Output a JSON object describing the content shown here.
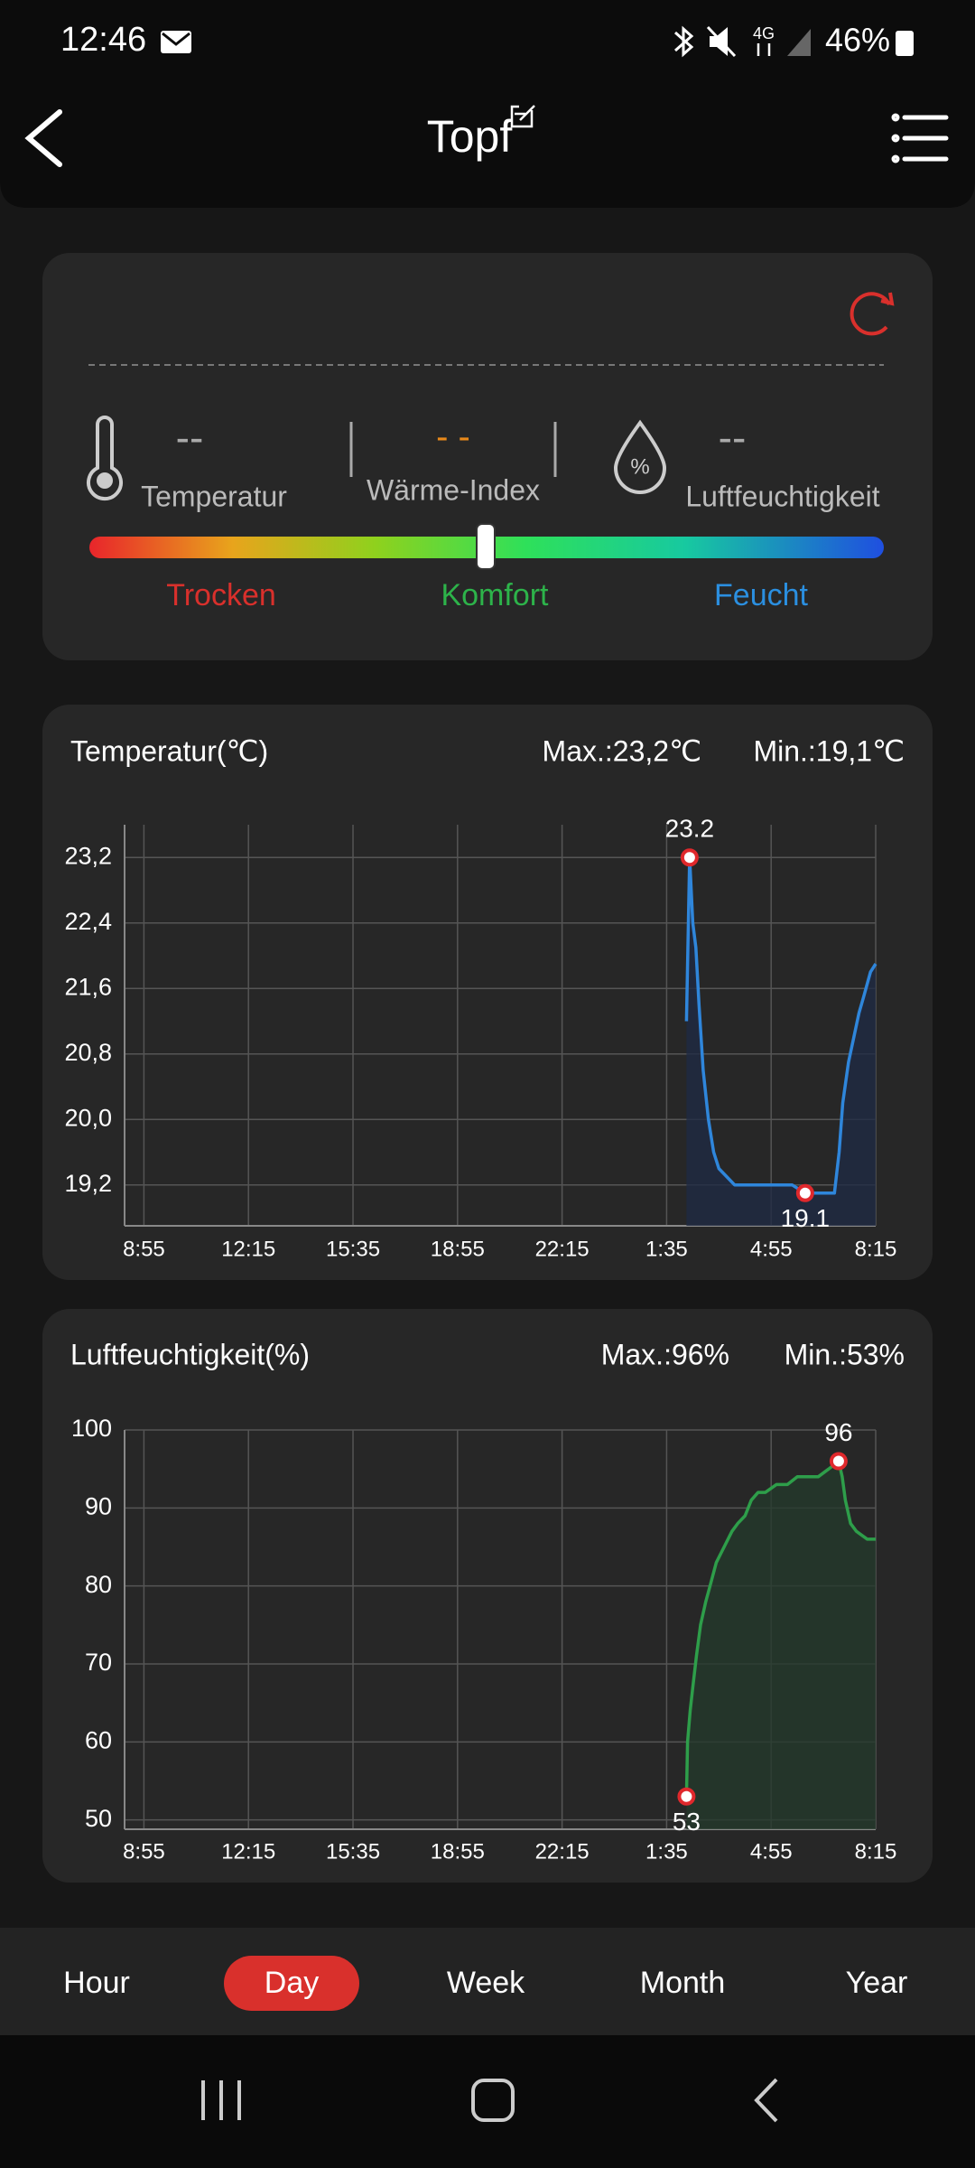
{
  "status_bar": {
    "time": "12:46",
    "network": "4G",
    "battery": "46%"
  },
  "header": {
    "title": "Topf"
  },
  "comfort": {
    "temperature": {
      "value": "--",
      "label": "Temperatur"
    },
    "heat_index": {
      "value": "- -",
      "label": "Wärme-Index"
    },
    "humidity": {
      "icon": "%",
      "value": "--",
      "label": "Luftfeuchtigkeit"
    },
    "scale": [
      "Trocken",
      "Komfort",
      "Feucht"
    ]
  },
  "chart_data": [
    {
      "type": "line",
      "title": "Temperatur(℃)",
      "max_label": "Max.:23,2℃",
      "min_label": "Min.:19,1℃",
      "color": "#2f86db",
      "fill": "#1f2a44",
      "x": [
        1038,
        1044,
        1050,
        1056,
        1062,
        1070,
        1080,
        1090,
        1100,
        1115,
        1130,
        1160,
        1200,
        1240,
        1265,
        1300,
        1321,
        1330,
        1337,
        1348,
        1358,
        1368,
        1377,
        1390,
        1400
      ],
      "values": [
        21.2,
        23.2,
        22.4,
        22.1,
        21.4,
        20.6,
        20.0,
        19.6,
        19.4,
        19.3,
        19.2,
        19.2,
        19.2,
        19.2,
        19.1,
        19.1,
        19.1,
        19.6,
        20.2,
        20.7,
        21.0,
        21.3,
        21.5,
        21.8,
        21.9
      ],
      "xlim": [
        -37,
        1400
      ],
      "xticks": [
        {
          "value": 0,
          "label": "8:55"
        },
        {
          "value": 200,
          "label": "12:15"
        },
        {
          "value": 400,
          "label": "15:35"
        },
        {
          "value": 600,
          "label": "18:55"
        },
        {
          "value": 800,
          "label": "22:15"
        },
        {
          "value": 1000,
          "label": "1:35"
        },
        {
          "value": 1200,
          "label": "4:55"
        },
        {
          "value": 1400,
          "label": "8:15"
        }
      ],
      "ylim": [
        18.7,
        23.6
      ],
      "yticks": [
        {
          "value": 19.2,
          "label": "19,2"
        },
        {
          "value": 20.0,
          "label": "20,0"
        },
        {
          "value": 20.8,
          "label": "20,8"
        },
        {
          "value": 21.6,
          "label": "21,6"
        },
        {
          "value": 22.4,
          "label": "22,4"
        },
        {
          "value": 23.2,
          "label": "23,2"
        }
      ],
      "grid": true,
      "annotations": [
        {
          "x": 1044,
          "y": 23.2,
          "label": "23.2",
          "position": "above"
        },
        {
          "x": 1265,
          "y": 19.1,
          "label": "19.1",
          "position": "below"
        }
      ]
    },
    {
      "type": "line",
      "title": "Luftfeuchtigkeit(%)",
      "max_label": "Max.:96%",
      "min_label": "Min.:53%",
      "color": "#2e9e4a",
      "fill": "#243a2c",
      "x": [
        1038,
        1040,
        1045,
        1050,
        1057,
        1065,
        1075,
        1083,
        1095,
        1110,
        1125,
        1136,
        1150,
        1162,
        1175,
        1189,
        1210,
        1231,
        1250,
        1271,
        1290,
        1310,
        1329,
        1336,
        1342,
        1352,
        1363,
        1384,
        1400
      ],
      "values": [
        53,
        60,
        64,
        67,
        71,
        75,
        78,
        80,
        83,
        85,
        87,
        88,
        89,
        91,
        92,
        92,
        93,
        93,
        94,
        94,
        94,
        95,
        96,
        94,
        91,
        88,
        87,
        86,
        86
      ],
      "xlim": [
        -37,
        1400
      ],
      "xticks": [
        {
          "value": 0,
          "label": "8:55"
        },
        {
          "value": 200,
          "label": "12:15"
        },
        {
          "value": 400,
          "label": "15:35"
        },
        {
          "value": 600,
          "label": "18:55"
        },
        {
          "value": 800,
          "label": "22:15"
        },
        {
          "value": 1000,
          "label": "1:35"
        },
        {
          "value": 1200,
          "label": "4:55"
        },
        {
          "value": 1400,
          "label": "8:15"
        }
      ],
      "ylim": [
        48.8,
        100
      ],
      "yticks": [
        50,
        60,
        70,
        80,
        90,
        100
      ],
      "grid": true,
      "annotations": [
        {
          "x": 1329,
          "y": 96,
          "label": "96",
          "position": "above"
        },
        {
          "x": 1038,
          "y": 53,
          "label": "53",
          "position": "below"
        }
      ]
    }
  ],
  "tabs": {
    "items": [
      "Hour",
      "Day",
      "Week",
      "Month",
      "Year"
    ],
    "active": 1
  }
}
